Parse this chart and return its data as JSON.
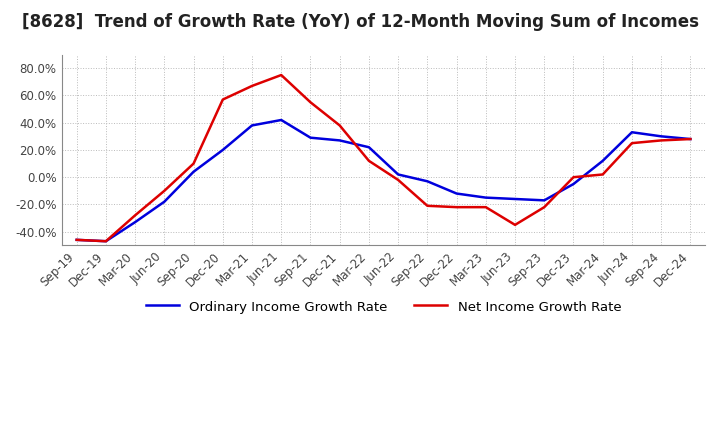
{
  "title": "[8628]  Trend of Growth Rate (YoY) of 12-Month Moving Sum of Incomes",
  "title_fontsize": 12,
  "ylim": [
    -0.5,
    0.9
  ],
  "yticks": [
    -0.4,
    -0.2,
    0.0,
    0.2,
    0.4,
    0.6,
    0.8
  ],
  "background_color": "#ffffff",
  "grid_color": "#bbbbbb",
  "ordinary_color": "#0000dd",
  "net_color": "#dd0000",
  "legend_labels": [
    "Ordinary Income Growth Rate",
    "Net Income Growth Rate"
  ],
  "x_labels": [
    "Sep-19",
    "Dec-19",
    "Mar-20",
    "Jun-20",
    "Sep-20",
    "Dec-20",
    "Mar-21",
    "Jun-21",
    "Sep-21",
    "Dec-21",
    "Mar-22",
    "Jun-22",
    "Sep-22",
    "Dec-22",
    "Mar-23",
    "Jun-23",
    "Sep-23",
    "Dec-23",
    "Mar-24",
    "Jun-24",
    "Sep-24",
    "Dec-24"
  ],
  "ordinary_income": [
    -0.46,
    -0.47,
    -0.33,
    -0.18,
    0.04,
    0.2,
    0.38,
    0.42,
    0.29,
    0.27,
    0.22,
    0.02,
    -0.03,
    -0.12,
    -0.15,
    -0.16,
    -0.17,
    -0.05,
    0.12,
    0.33,
    0.3,
    0.28
  ],
  "net_income": [
    -0.46,
    -0.47,
    -0.28,
    -0.1,
    0.1,
    0.57,
    0.67,
    0.75,
    0.55,
    0.38,
    0.12,
    -0.02,
    -0.21,
    -0.22,
    -0.22,
    -0.35,
    -0.22,
    0.0,
    0.02,
    0.25,
    0.27,
    0.28
  ]
}
